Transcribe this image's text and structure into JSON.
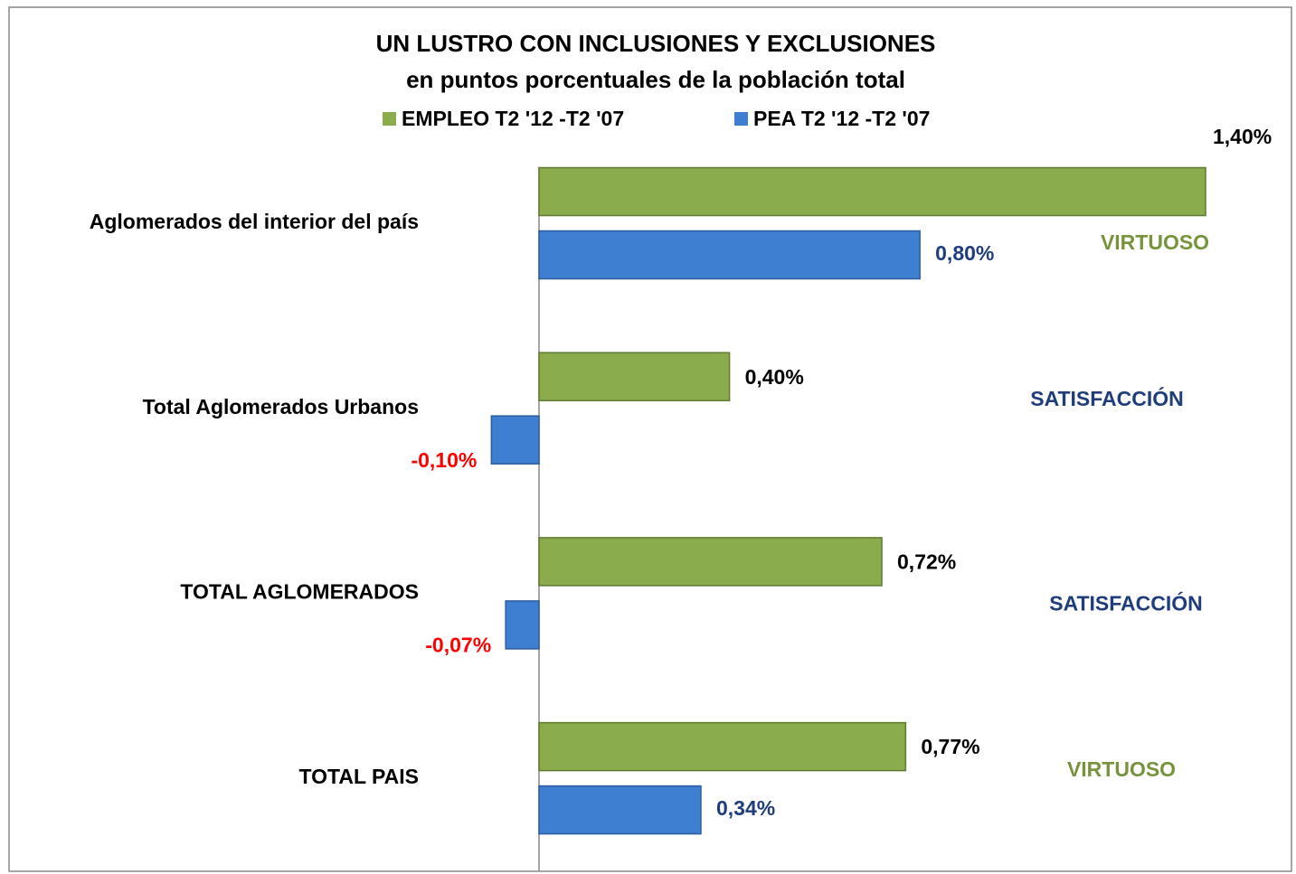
{
  "chart_data": {
    "type": "bar",
    "orientation": "horizontal",
    "title": "UN LUSTRO CON INCLUSIONES Y EXCLUSIONES",
    "subtitle": "en puntos porcentuales de la población  total",
    "categories": [
      "Aglomerados del interior del país",
      "Total Aglomerados Urbanos",
      "TOTAL AGLOMERADOS",
      "TOTAL PAIS"
    ],
    "series": [
      {
        "name": "EMPLEO T2 '12 -T2 '07",
        "color": "#8bac4c",
        "values": [
          1.4,
          0.4,
          0.72,
          0.77
        ],
        "value_labels": [
          "1,40%",
          "0,40%",
          "0,72%",
          "0,77%"
        ]
      },
      {
        "name": "PEA T2 '12 -T2 '07",
        "color": "#3f7fd1",
        "values": [
          0.8,
          -0.1,
          -0.07,
          0.34
        ],
        "value_labels": [
          "0,80%",
          "-0,10%",
          "-0,07%",
          "0,34%"
        ]
      }
    ],
    "annotations": [
      {
        "text": "VIRTUOSO",
        "color": "#77933c"
      },
      {
        "text": "SATISFACCIÓN",
        "color": "#1f3d7a"
      },
      {
        "text": "SATISFACCIÓN",
        "color": "#1f3d7a"
      },
      {
        "text": "VIRTUOSO",
        "color": "#77933c"
      }
    ]
  }
}
